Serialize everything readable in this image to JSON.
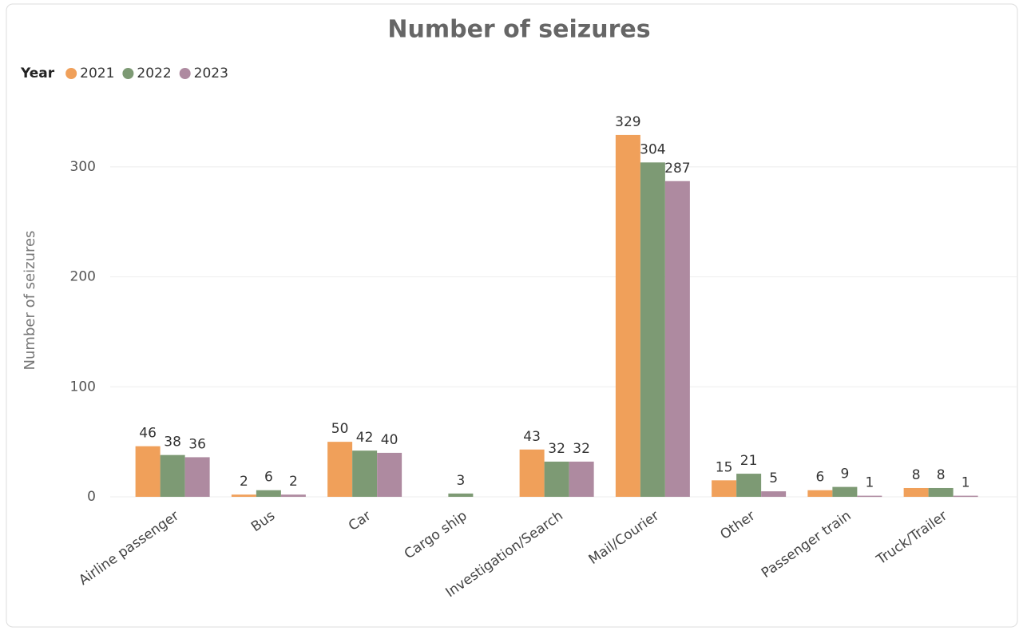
{
  "chart_data": {
    "type": "bar",
    "title": "Number of seizures",
    "legend_title": "Year",
    "y_label": "Number of seizures",
    "categories": [
      "Airline passenger",
      "Bus",
      "Car",
      "Cargo ship",
      "Investigation/Search",
      "Mail/Courier",
      "Other",
      "Passenger train",
      "Truck/Trailer"
    ],
    "series": [
      {
        "name": "2021",
        "color": "#f0a05a",
        "values": [
          46,
          2,
          50,
          null,
          43,
          329,
          15,
          6,
          8
        ]
      },
      {
        "name": "2022",
        "color": "#7d9a74",
        "values": [
          38,
          6,
          42,
          3,
          32,
          304,
          21,
          9,
          8
        ]
      },
      {
        "name": "2023",
        "color": "#ae8aa0",
        "values": [
          36,
          2,
          40,
          null,
          32,
          287,
          5,
          1,
          1
        ]
      }
    ],
    "ylim": [
      0,
      350
    ],
    "yticks": [
      0,
      100,
      200,
      300
    ],
    "grid": true,
    "legend": "top-left"
  }
}
